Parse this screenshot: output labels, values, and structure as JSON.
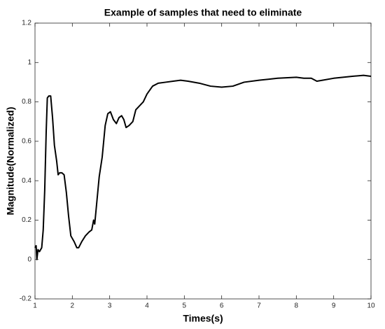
{
  "chart_data": {
    "type": "line",
    "title": "Example of samples that need to eliminate",
    "xlabel": "Times(s)",
    "ylabel": "Magnitude(Normalized)",
    "color": "#000000",
    "x": [
      1.0,
      1.03,
      1.05,
      1.08,
      1.12,
      1.18,
      1.22,
      1.26,
      1.3,
      1.33,
      1.37,
      1.42,
      1.47,
      1.52,
      1.58,
      1.62,
      1.66,
      1.72,
      1.78,
      1.84,
      1.9,
      1.96,
      2.05,
      2.12,
      2.17,
      2.25,
      2.35,
      2.45,
      2.52,
      2.57,
      2.6,
      2.65,
      2.72,
      2.8,
      2.88,
      2.95,
      3.02,
      3.1,
      3.18,
      3.25,
      3.32,
      3.38,
      3.44,
      3.52,
      3.62,
      3.7,
      3.8,
      3.9,
      4.0,
      4.15,
      4.3,
      4.5,
      4.7,
      4.9,
      5.1,
      5.4,
      5.7,
      6.0,
      6.3,
      6.6,
      7.0,
      7.5,
      8.0,
      8.2,
      8.4,
      8.55,
      8.7,
      9.0,
      9.5,
      9.8,
      10.0
    ],
    "values": [
      0.06,
      0.07,
      0.0,
      0.05,
      0.04,
      0.06,
      0.15,
      0.35,
      0.65,
      0.82,
      0.83,
      0.83,
      0.72,
      0.58,
      0.5,
      0.43,
      0.44,
      0.44,
      0.43,
      0.34,
      0.22,
      0.12,
      0.09,
      0.06,
      0.06,
      0.09,
      0.12,
      0.14,
      0.15,
      0.2,
      0.18,
      0.28,
      0.42,
      0.52,
      0.68,
      0.74,
      0.75,
      0.71,
      0.69,
      0.72,
      0.73,
      0.71,
      0.67,
      0.68,
      0.7,
      0.76,
      0.78,
      0.8,
      0.84,
      0.88,
      0.895,
      0.9,
      0.905,
      0.91,
      0.905,
      0.895,
      0.88,
      0.875,
      0.88,
      0.9,
      0.91,
      0.92,
      0.925,
      0.92,
      0.92,
      0.905,
      0.91,
      0.92,
      0.93,
      0.935,
      0.93
    ],
    "xlim": [
      1,
      10
    ],
    "xticks": [
      1,
      2,
      3,
      4,
      5,
      6,
      7,
      8,
      9,
      10
    ],
    "ylim": [
      -0.2,
      1.2
    ],
    "yticks": [
      -0.2,
      0,
      0.2,
      0.4,
      0.6,
      0.8,
      1,
      1.2
    ]
  }
}
